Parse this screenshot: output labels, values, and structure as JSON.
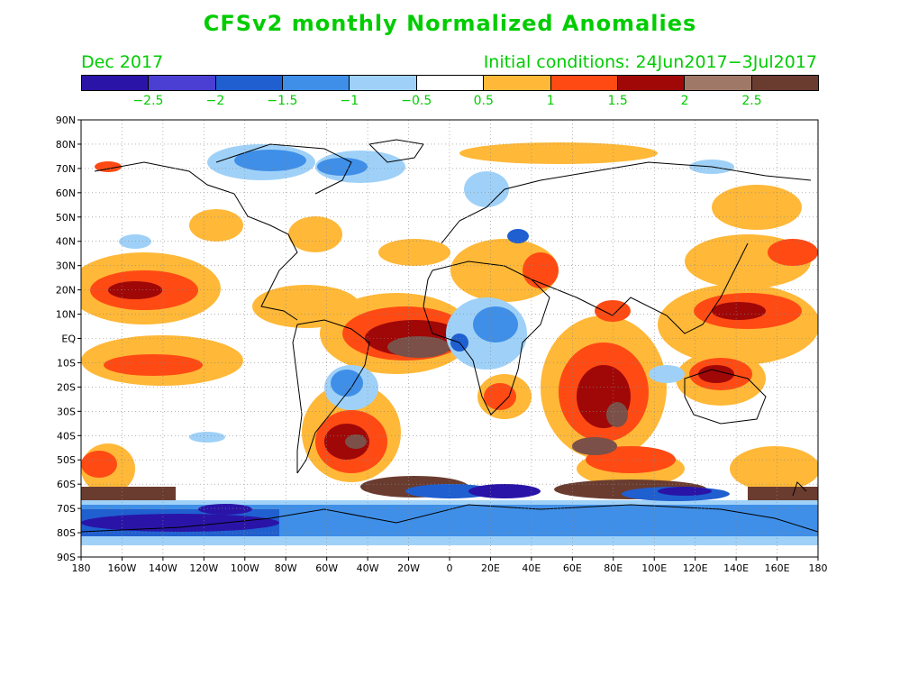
{
  "title": "CFSv2 monthly Normalized Anomalies",
  "month_label": "Dec 2017",
  "initial_conditions": "Initial conditions: 24Jun2017−3Jul2017",
  "colorbar": {
    "colors": [
      "#2a14a8",
      "#4a3fd2",
      "#1f5fd0",
      "#3f8fe8",
      "#9fd1f8",
      "#ffffff",
      "#ffb837",
      "#ff4a14",
      "#a00808",
      "#a07868",
      "#6a3c30"
    ],
    "labels": [
      "−2.5",
      "−2",
      "−1.5",
      "−1",
      "−0.5",
      "0.5",
      "1",
      "1.5",
      "2",
      "2.5"
    ]
  },
  "lat_labels": [
    "90N",
    "80N",
    "70N",
    "60N",
    "50N",
    "40N",
    "30N",
    "20N",
    "10N",
    "EQ",
    "10S",
    "20S",
    "30S",
    "40S",
    "50S",
    "60S",
    "70S",
    "80S",
    "90S"
  ],
  "lon_labels": [
    "180",
    "160W",
    "140W",
    "120W",
    "100W",
    "80W",
    "60W",
    "40W",
    "20W",
    "0",
    "20E",
    "40E",
    "60E",
    "80E",
    "100E",
    "120E",
    "140E",
    "160E",
    "180"
  ]
}
